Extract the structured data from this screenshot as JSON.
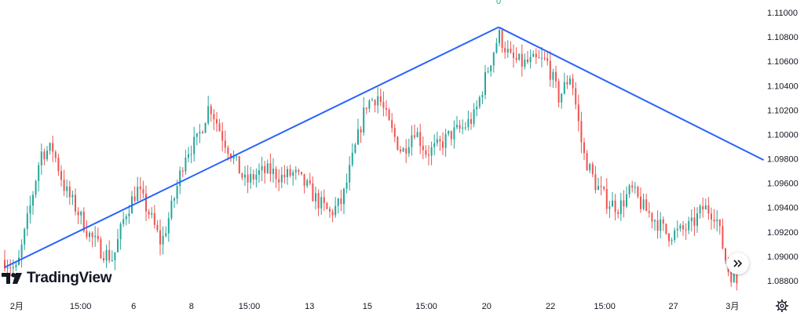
{
  "chart_data": {
    "type": "candlestick",
    "colors": {
      "up": "#26a69a",
      "down": "#ef5350",
      "trendline": "#2962ff",
      "axis_text": "#131722"
    },
    "y_axis": {
      "range": [
        1.087,
        1.111
      ],
      "tick_values": [
        1.088,
        1.09,
        1.092,
        1.094,
        1.096,
        1.098,
        1.1,
        1.102,
        1.104,
        1.106,
        1.108,
        1.11
      ],
      "tick_labels": [
        "1.08800",
        "1.09000",
        "1.09200",
        "1.09400",
        "1.09600",
        "1.09800",
        "1.10000",
        "1.10200",
        "1.10400",
        "1.10600",
        "1.10800",
        "1.11000"
      ]
    },
    "x_axis": {
      "range": [
        0,
        61
      ],
      "tick_positions": [
        1,
        6.3,
        10.7,
        15.5,
        20.3,
        25.3,
        30.1,
        35,
        40,
        45.3,
        49.8,
        55.5,
        60.4
      ],
      "tick_labels": [
        "2月",
        "15:00",
        "6",
        "8",
        "15:00",
        "13",
        "15",
        "15:00",
        "20",
        "22",
        "15:00",
        "27",
        "3月"
      ]
    },
    "close_path": [
      [
        0,
        1.0897
      ],
      [
        1,
        1.0888
      ],
      [
        2,
        1.0935
      ],
      [
        3,
        1.0985
      ],
      [
        4,
        1.0988
      ],
      [
        5,
        1.0955
      ],
      [
        6,
        1.0938
      ],
      [
        7,
        1.0918
      ],
      [
        8,
        1.0905
      ],
      [
        9,
        1.0898
      ],
      [
        10,
        1.0935
      ],
      [
        11,
        1.0955
      ],
      [
        12,
        1.0935
      ],
      [
        13,
        1.091
      ],
      [
        14,
        1.0945
      ],
      [
        15,
        1.0985
      ],
      [
        16,
        1.0995
      ],
      [
        17,
        1.1025
      ],
      [
        18,
        1.1
      ],
      [
        19,
        1.098
      ],
      [
        20,
        1.096
      ],
      [
        21,
        1.0968
      ],
      [
        22,
        1.097
      ],
      [
        23,
        1.0965
      ],
      [
        24,
        1.0968
      ],
      [
        25,
        1.0958
      ],
      [
        26,
        1.0945
      ],
      [
        27,
        1.0935
      ],
      [
        28,
        1.0945
      ],
      [
        29,
        1.0985
      ],
      [
        30,
        1.1025
      ],
      [
        31,
        1.1032
      ],
      [
        32,
        1.1005
      ],
      [
        33,
        1.0985
      ],
      [
        34,
        1.1005
      ],
      [
        35,
        1.0985
      ],
      [
        36,
        1.099
      ],
      [
        37,
        1.1
      ],
      [
        38,
        1.1005
      ],
      [
        39,
        1.1015
      ],
      [
        40,
        1.105
      ],
      [
        41,
        1.1082
      ],
      [
        42,
        1.1062
      ],
      [
        43,
        1.1058
      ],
      [
        44,
        1.106
      ],
      [
        45,
        1.106
      ],
      [
        46,
        1.103
      ],
      [
        47,
        1.105
      ],
      [
        48,
        1.0985
      ],
      [
        49,
        1.096
      ],
      [
        50,
        1.0945
      ],
      [
        51,
        1.094
      ],
      [
        52,
        1.0955
      ],
      [
        53,
        1.094
      ],
      [
        54,
        1.093
      ],
      [
        55,
        1.0918
      ],
      [
        56,
        1.092
      ],
      [
        57,
        1.0925
      ],
      [
        58,
        1.094
      ],
      [
        59,
        1.0935
      ],
      [
        60,
        1.089
      ],
      [
        61,
        1.0875
      ]
    ],
    "trendlines": [
      {
        "points": [
          [
            0,
            1.0891
          ],
          [
            41,
            1.1088
          ]
        ]
      },
      {
        "points": [
          [
            41,
            1.1088
          ],
          [
            63,
            1.0979
          ]
        ]
      }
    ],
    "annotations": [
      {
        "text": "0",
        "x": 41,
        "y": 1.1107
      }
    ],
    "grid": false
  },
  "branding": {
    "logo_text": "TradingView"
  },
  "controls": {
    "scroll_icon": "double-chevron-right-icon",
    "settings_icon": "gear-icon"
  }
}
